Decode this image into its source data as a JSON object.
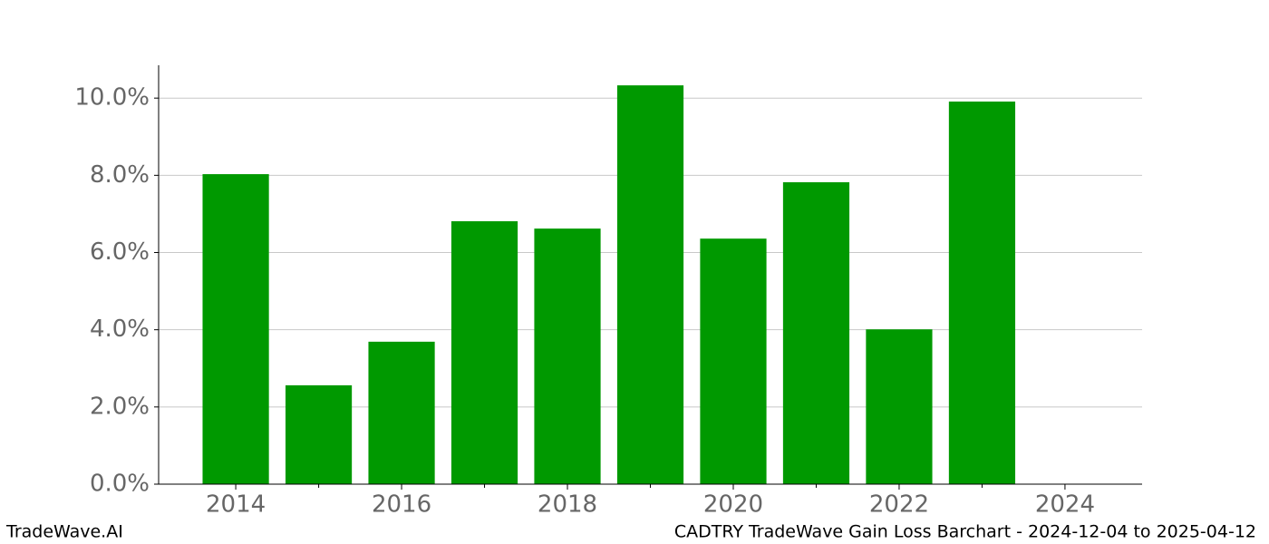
{
  "chart_data": {
    "type": "bar",
    "x": [
      2014,
      2015,
      2016,
      2017,
      2018,
      2019,
      2020,
      2021,
      2022,
      2023
    ],
    "values": [
      8.03,
      2.56,
      3.69,
      6.81,
      6.62,
      10.33,
      6.36,
      7.82,
      4.01,
      9.91
    ],
    "color": "#009900",
    "bar_width": 0.8,
    "xlim": [
      2013.07,
      2024.93
    ],
    "xticks": [
      2014,
      2016,
      2018,
      2020,
      2022,
      2024
    ],
    "xminorticks": [
      2015,
      2017,
      2019,
      2021,
      2023
    ],
    "ylim": [
      0,
      10.85
    ],
    "yticks": [
      {
        "value": 0,
        "label": "0.0%"
      },
      {
        "value": 2,
        "label": "2.0%"
      },
      {
        "value": 4,
        "label": "4.0%"
      },
      {
        "value": 6,
        "label": "6.0%"
      },
      {
        "value": 8,
        "label": "8.0%"
      },
      {
        "value": 10,
        "label": "10.0%"
      }
    ],
    "grid": true,
    "footer_left": "TradeWave.AI",
    "footer_right": "CADTRY TradeWave Gain Loss Barchart - 2024-12-04 to 2025-04-12"
  }
}
